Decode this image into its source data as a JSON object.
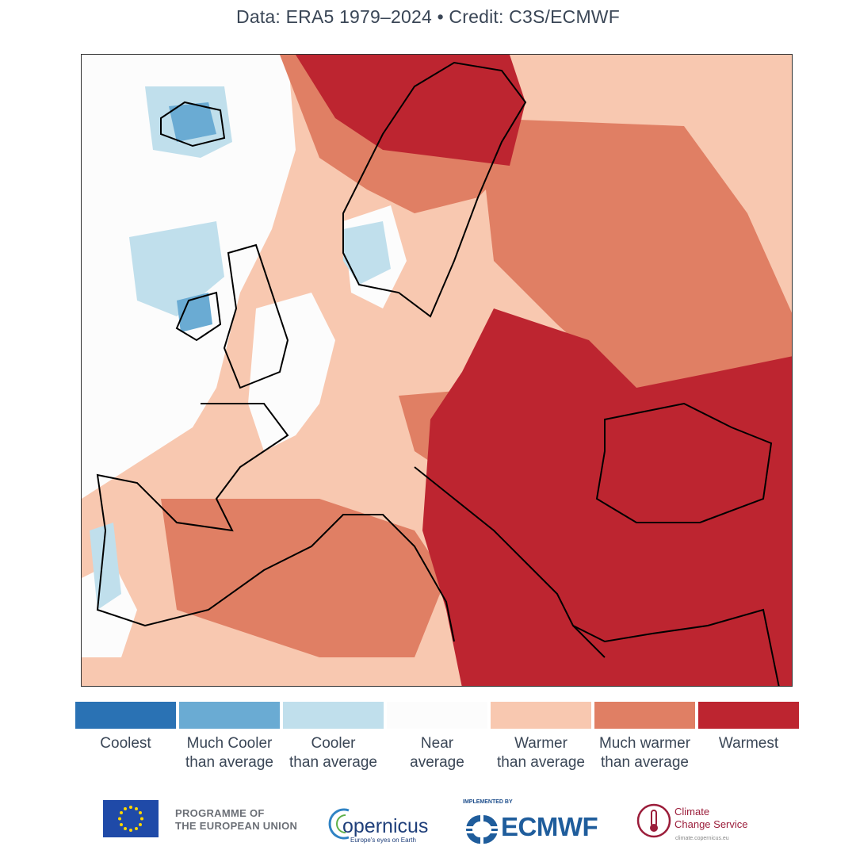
{
  "header": {
    "credit": "Data: ERA5 1979–2024 • Credit: C3S/ECMWF"
  },
  "map": {
    "region": "Europe",
    "colors": {
      "coolest": "#2a72b4",
      "much_cooler": "#6aabd3",
      "cooler": "#c0dfec",
      "near": "#fcfcfc",
      "warmer": "#f8c8b0",
      "much_warmer": "#e07f64",
      "warmest": "#bd2530",
      "coastline": "#000000"
    }
  },
  "legend": {
    "items": [
      {
        "label": "Coolest",
        "color": "#2a72b4"
      },
      {
        "label": "Much Cooler\nthan average",
        "color": "#6aabd3"
      },
      {
        "label": "Cooler\nthan average",
        "color": "#c0dfec"
      },
      {
        "label": "Near\naverage",
        "color": "#fcfcfc"
      },
      {
        "label": "Warmer\nthan average",
        "color": "#f8c8b0"
      },
      {
        "label": "Much warmer\nthan average",
        "color": "#e07f64"
      },
      {
        "label": "Warmest",
        "color": "#bd2530"
      }
    ]
  },
  "footer": {
    "eu_line1": "PROGRAMME OF",
    "eu_line2": "THE EUROPEAN UNION",
    "copernicus_word": "opernicus",
    "copernicus_tagline": "Europe's eyes on Earth",
    "ecmwf_implemented": "IMPLEMENTED BY",
    "ecmwf_word": "ECMWF",
    "c3s_line1": "Climate",
    "c3s_line2": "Change Service",
    "c3s_url": "climate.copernicus.eu"
  }
}
